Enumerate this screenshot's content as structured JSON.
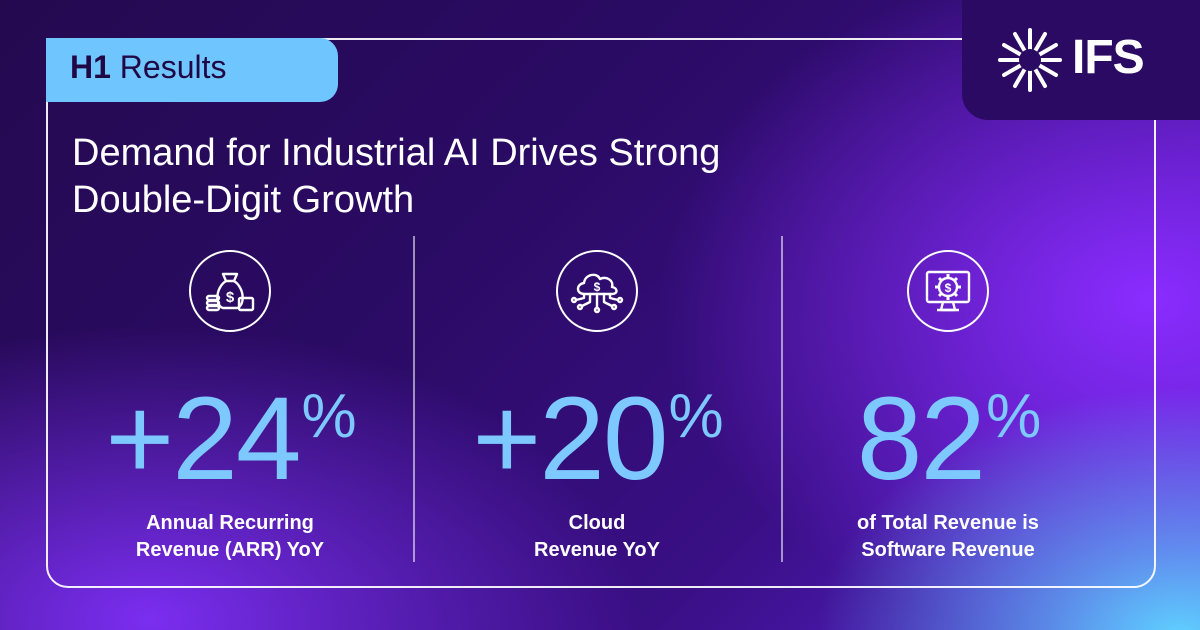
{
  "tag": {
    "bold": "H1",
    "rest": " Results"
  },
  "brand": {
    "name": "IFS"
  },
  "headline": {
    "line1": "Demand for Industrial AI Drives Strong",
    "line2": "Double-Digit Growth"
  },
  "stats": [
    {
      "icon": "money-bag-icon",
      "value": "+24",
      "unit": "%",
      "caption_line1": "Annual Recurring",
      "caption_line2": "Revenue (ARR) YoY"
    },
    {
      "icon": "cloud-dollar-icon",
      "value": "+20",
      "unit": "%",
      "caption_line1": "Cloud",
      "caption_line2": "Revenue YoY"
    },
    {
      "icon": "monitor-gear-dollar-icon",
      "value": "82",
      "unit": "%",
      "caption_line1": "of Total Revenue is",
      "caption_line2": "Software Revenue"
    }
  ],
  "colors": {
    "accent": "#7cc8ff",
    "tag_bg": "#6fc6ff",
    "tag_text": "#200845",
    "logo_bg": "#2a0a62"
  }
}
